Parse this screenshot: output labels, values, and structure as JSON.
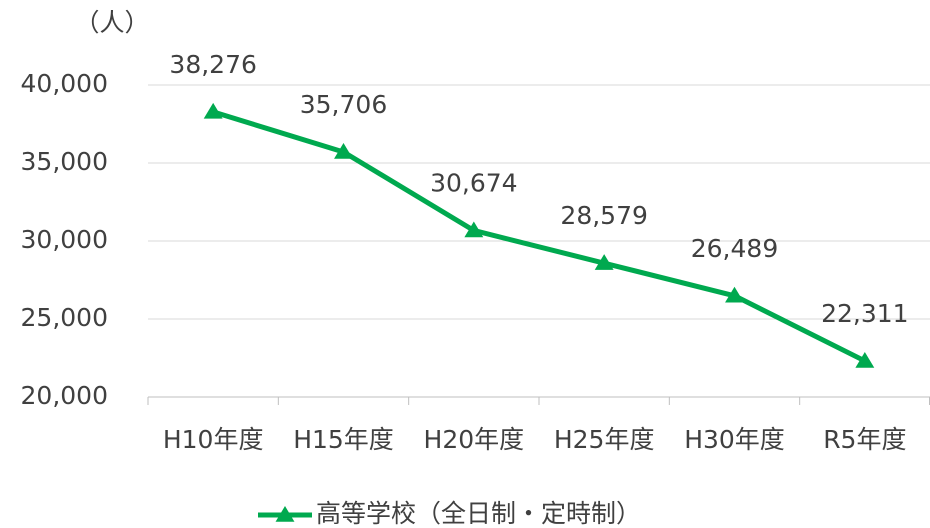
{
  "chart_data": {
    "type": "line",
    "ylabel": "（人）",
    "categories": [
      "H10年度",
      "H15年度",
      "H20年度",
      "H25年度",
      "H30年度",
      "R5年度"
    ],
    "series": [
      {
        "name": "高等学校（全日制・定時制）",
        "color": "#00a94f",
        "values": [
          38276,
          35706,
          30674,
          28579,
          26489,
          22311
        ],
        "value_labels": [
          "38,276",
          "35,706",
          "30,674",
          "28,579",
          "26,489",
          "22,311"
        ]
      }
    ],
    "ylim": [
      20000,
      40000
    ],
    "yticks": [
      {
        "value": 20000,
        "label": "20,000"
      },
      {
        "value": 25000,
        "label": "25,000"
      },
      {
        "value": 30000,
        "label": "30,000"
      },
      {
        "value": 35000,
        "label": "35,000"
      },
      {
        "value": 40000,
        "label": "40,000"
      }
    ],
    "grid": true,
    "legend": "bottom"
  }
}
